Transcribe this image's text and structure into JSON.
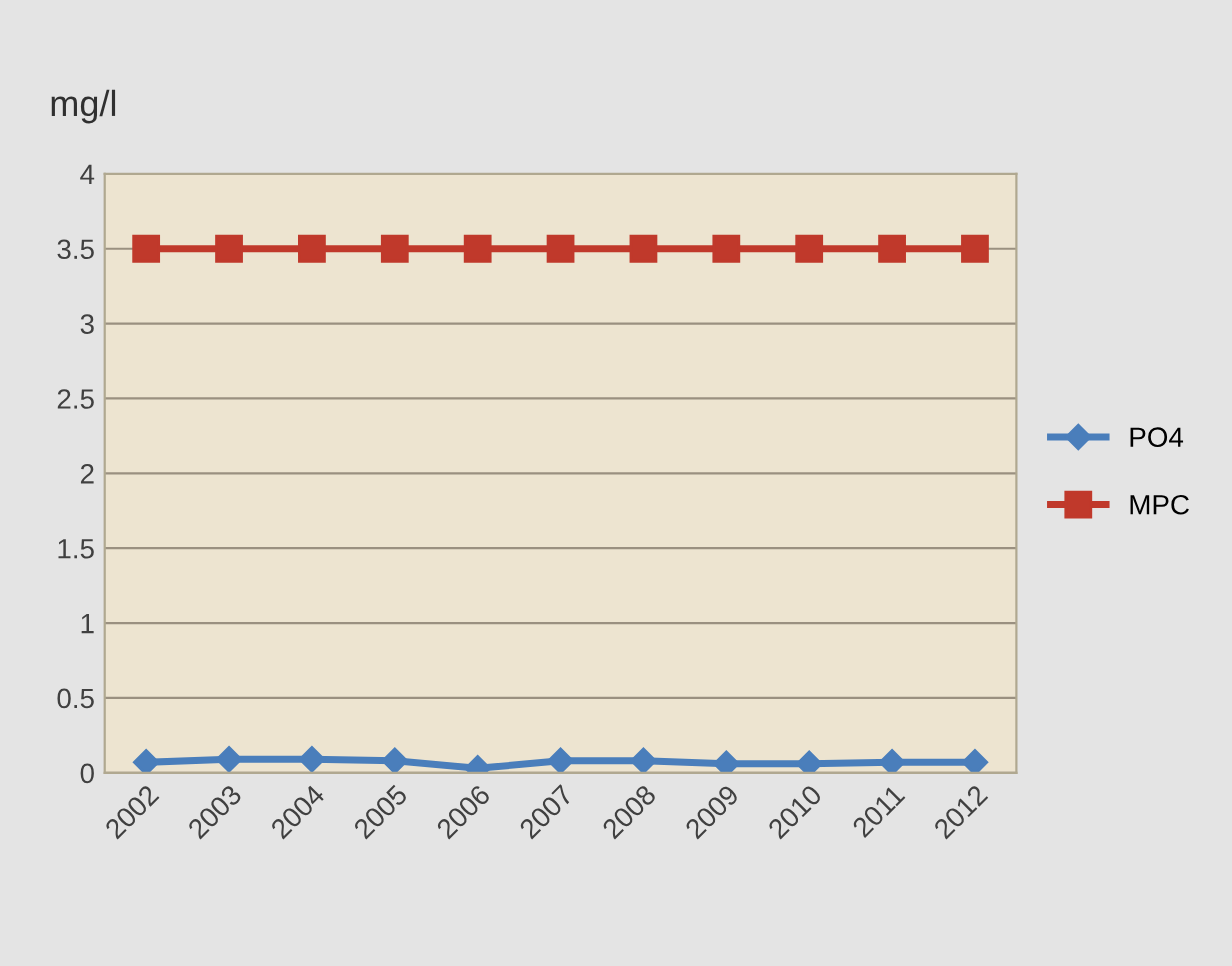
{
  "chart_data": {
    "type": "line",
    "ylabel": "mg/l",
    "categories": [
      "2002",
      "2003",
      "2004",
      "2005",
      "2006",
      "2007",
      "2008",
      "2009",
      "2010",
      "2011",
      "2012"
    ],
    "series": [
      {
        "name": "PO4",
        "color": "#4a7ebb",
        "marker": "diamond",
        "values": [
          0.07,
          0.09,
          0.09,
          0.08,
          0.03,
          0.08,
          0.08,
          0.06,
          0.06,
          0.07,
          0.07
        ]
      },
      {
        "name": "MPC",
        "color": "#c0392b",
        "marker": "square",
        "values": [
          3.5,
          3.5,
          3.5,
          3.5,
          3.5,
          3.5,
          3.5,
          3.5,
          3.5,
          3.5,
          3.5
        ]
      }
    ],
    "ylim": [
      0,
      4
    ],
    "yticks": [
      0,
      0.5,
      1,
      1.5,
      2,
      2.5,
      3,
      3.5,
      4
    ],
    "grid": "y",
    "legend": "right"
  }
}
